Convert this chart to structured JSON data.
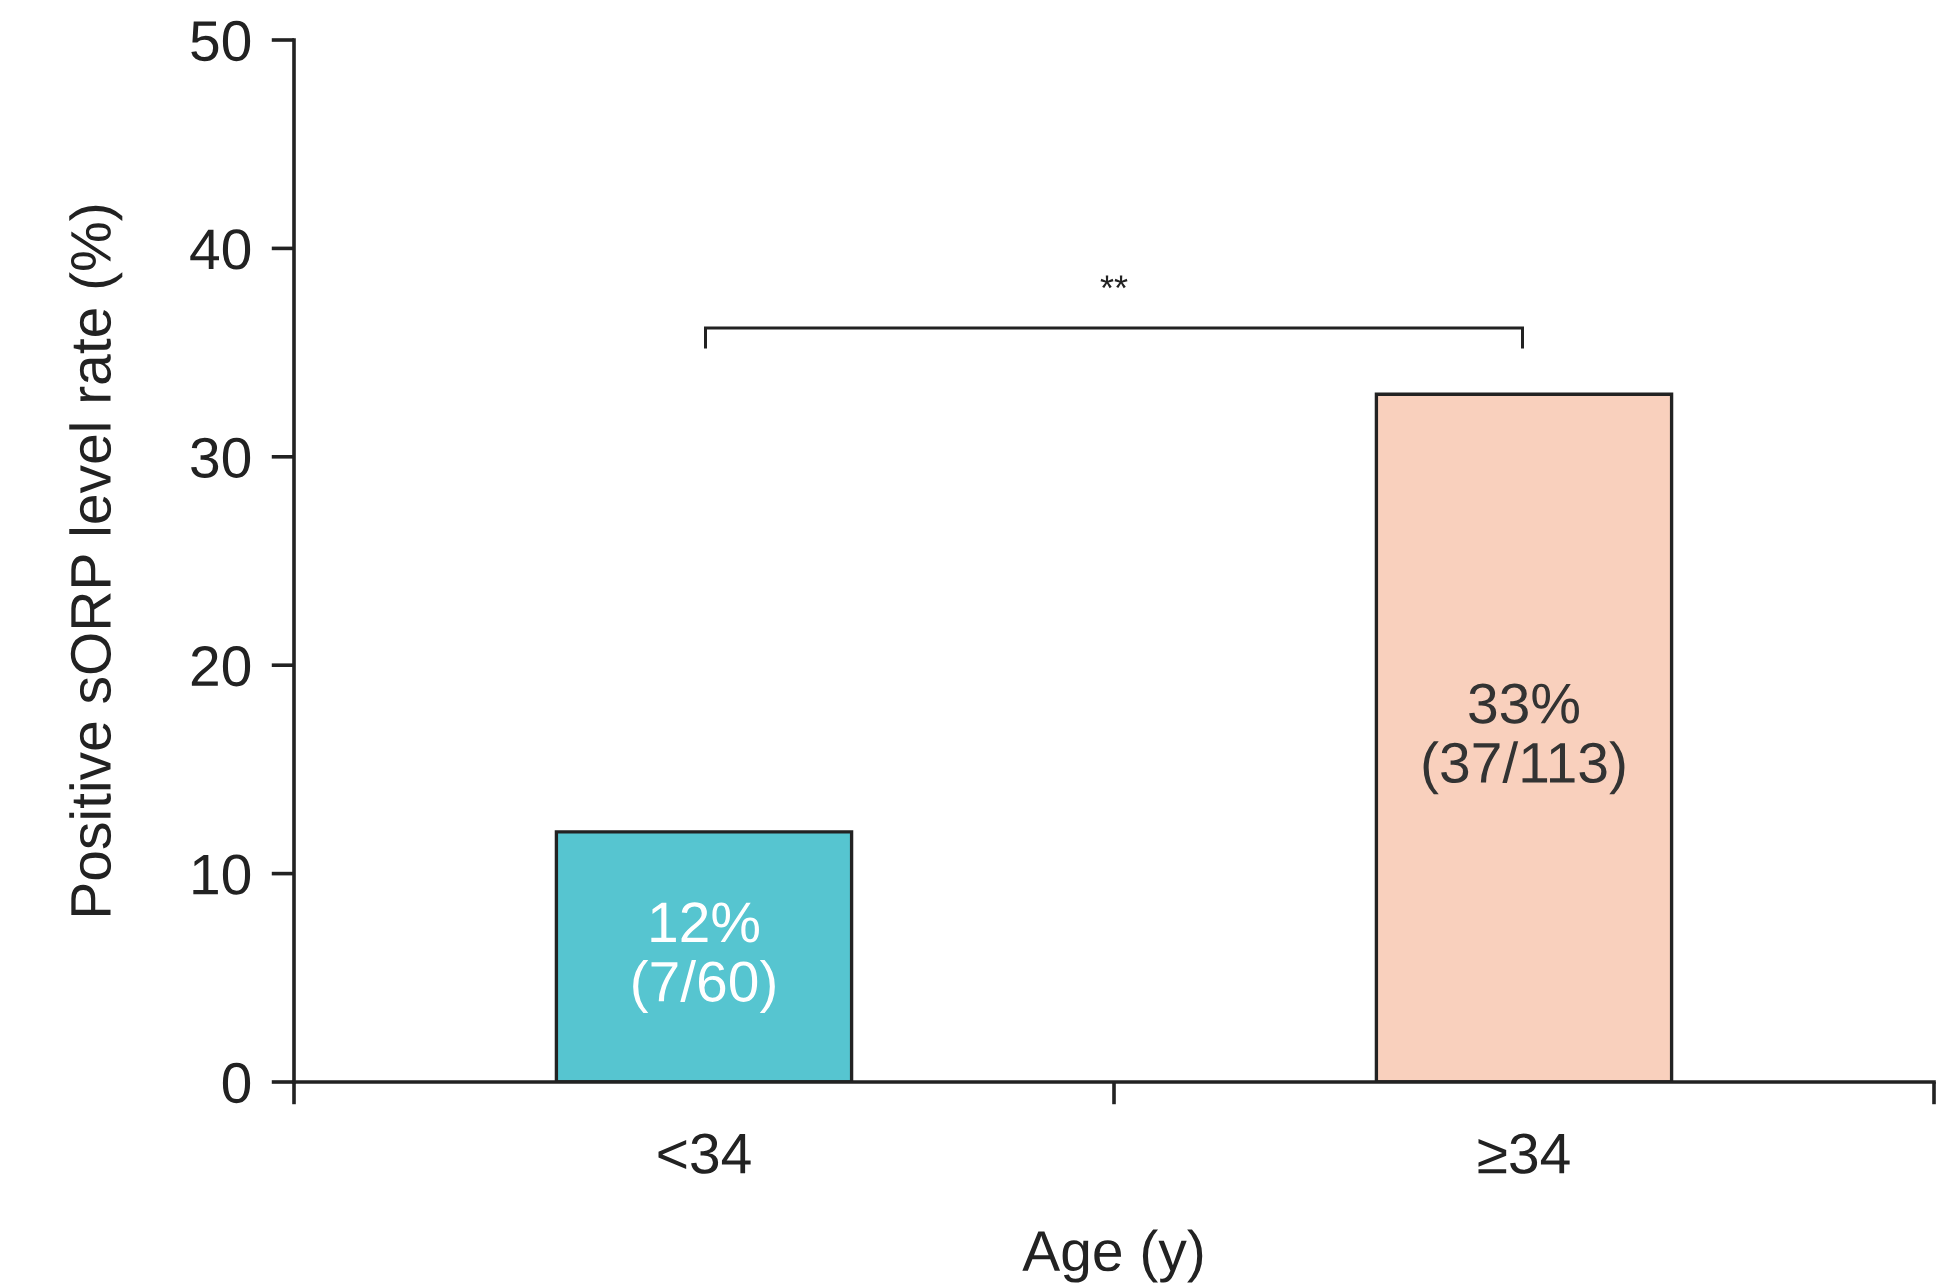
{
  "chart_data": {
    "type": "bar",
    "categories": [
      "<34",
      "≥34"
    ],
    "values": [
      12,
      33
    ],
    "colors": [
      "#56c5d0",
      "#f9d0bd"
    ],
    "value_labels": [
      "12%\n(7/60)",
      "33%\n(37/113)"
    ],
    "xlabel": "Age (y)",
    "ylabel": "Positive sORP level rate (%)",
    "ylim": [
      0,
      50
    ],
    "yticks": [
      0,
      10,
      20,
      30,
      40,
      50
    ],
    "annotations": [
      "**"
    ]
  }
}
